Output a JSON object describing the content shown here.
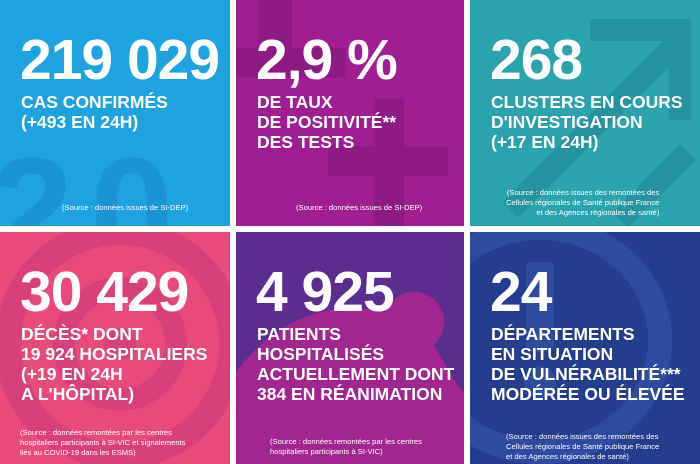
{
  "tiles": [
    {
      "value": "219 029",
      "lines": [
        "CAS CONFIRMÉS",
        "(+493 EN 24H)"
      ],
      "source": [
        "(Source : données issues de SI-DEP)"
      ],
      "color": "#1FA3E0",
      "icon": "number-2-0-watermark"
    },
    {
      "value": "2,9 %",
      "lines": [
        "DE TAUX",
        "DE POSITIVITÉ**",
        "DES TESTS"
      ],
      "source": [
        "(Source : données issues de SI-DEP)"
      ],
      "color": "#A01E92",
      "icon": "plus-minus-watermark"
    },
    {
      "value": "268",
      "lines": [
        "CLUSTERS EN COURS",
        "D'INVESTIGATION",
        "(+17 EN 24H)"
      ],
      "source": [
        "(Source : données issues des remontées des",
        "Cellules régionales de Santé publique France",
        "et des Agences régionales de santé)"
      ],
      "color": "#2AA3AC",
      "icon": "arrows-watermark"
    },
    {
      "value": "30 429",
      "lines": [
        "DÉCÈS* DONT",
        "19 924 HOSPITALIERS",
        "(+19 EN 24H",
        "A L'HÔPITAL)"
      ],
      "source": [
        "(Source : données remontées par les centres",
        "hospitaliers participants à SI-VIC et signalements",
        "liés au COVID-19 dans les ESMS)"
      ],
      "color": "#E84A7C",
      "icon": "target-watermark"
    },
    {
      "value": "4 925",
      "lines": [
        "PATIENTS",
        "HOSPITALISÉS",
        "ACTUELLEMENT DONT",
        "384 EN RÉANIMATION"
      ],
      "source": [
        "(Source : données remontées par les centres",
        "hospitaliers participants à SI-VIC)"
      ],
      "color": "#5A2D8F",
      "icon": "bed-watermark"
    },
    {
      "value": "24",
      "lines": [
        "DÉPARTEMENTS",
        "EN SITUATION",
        "DE VULNÉRABILITÉ***",
        "MODÉRÉE OU ÉLEVÉE"
      ],
      "source": [
        "(Source : données issues des remontées des",
        "Cellules régionales de Santé publique France",
        "et des Agences régionales de santé)"
      ],
      "color": "#253D8E",
      "icon": "alert-bubble-watermark"
    }
  ]
}
